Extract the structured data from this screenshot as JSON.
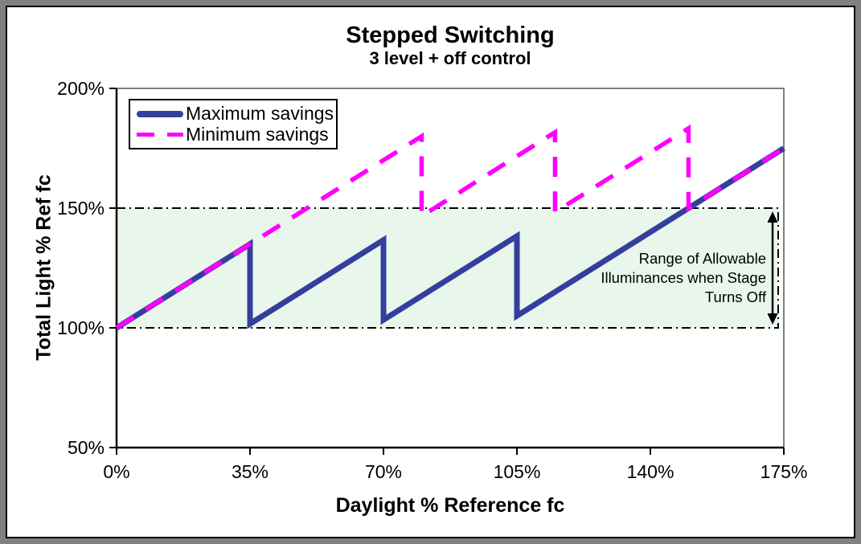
{
  "frame": {
    "outer_border_color": "#808080",
    "inner_border_color": "#000000",
    "background": "#FFFFFF"
  },
  "chart_data": {
    "type": "line",
    "title": "Stepped Switching",
    "subtitle": "3 level + off control",
    "xlabel": "Daylight % Reference fc",
    "ylabel": "Total Light % Ref fc",
    "xlim": [
      0,
      175
    ],
    "ylim": [
      50,
      200
    ],
    "x_ticks": [
      {
        "value": 0,
        "label": "0%"
      },
      {
        "value": 35,
        "label": "35%"
      },
      {
        "value": 70,
        "label": "70%"
      },
      {
        "value": 105,
        "label": "105%"
      },
      {
        "value": 140,
        "label": "140%"
      },
      {
        "value": 175,
        "label": "175%"
      }
    ],
    "y_ticks": [
      {
        "value": 50,
        "label": "50%"
      },
      {
        "value": 100,
        "label": "100%"
      },
      {
        "value": 150,
        "label": "150%"
      },
      {
        "value": 200,
        "label": "200%"
      }
    ],
    "series": [
      {
        "name": "Maximum savings",
        "color": "#333F9C",
        "style": "solid",
        "line_width": 7,
        "points": [
          [
            0,
            100
          ],
          [
            35,
            135
          ],
          [
            35,
            101.67
          ],
          [
            70,
            136.67
          ],
          [
            70,
            103.33
          ],
          [
            105,
            138.33
          ],
          [
            105,
            105
          ],
          [
            175,
            175
          ]
        ]
      },
      {
        "name": "Minimum savings",
        "color": "#FF00FF",
        "style": "dashed",
        "line_width": 5.5,
        "points": [
          [
            0,
            100
          ],
          [
            80,
            180
          ],
          [
            80,
            146.67
          ],
          [
            115,
            181.67
          ],
          [
            115,
            148.33
          ],
          [
            150,
            183.33
          ],
          [
            150,
            150
          ],
          [
            175,
            175
          ]
        ]
      }
    ],
    "band": {
      "y_from": 100,
      "y_to": 150,
      "fill": "#E9F6EB",
      "border_style": "dash-dot",
      "border_color": "#000000"
    },
    "annotation": {
      "text": "Range of Allowable\nIlluminances when Stage\nTurns Off",
      "arrow": "vertical double-headed arrow spanning band"
    },
    "legend_position": "top-left",
    "axis_color": "#000000",
    "plot_border_color": "#808080"
  }
}
